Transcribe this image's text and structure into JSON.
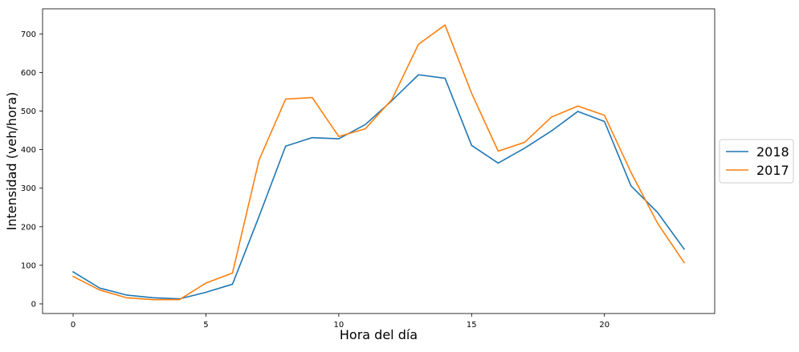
{
  "chart_data": {
    "type": "line",
    "title": "",
    "xlabel": "Hora del día",
    "ylabel": "Intensidad (veh/hora)",
    "xlim": [
      -1.15,
      24.15
    ],
    "ylim": [
      -25,
      765
    ],
    "xticks": [
      0,
      5,
      10,
      15,
      20
    ],
    "yticks": [
      0,
      100,
      200,
      300,
      400,
      500,
      600,
      700
    ],
    "grid": false,
    "legend_position": "outside right",
    "x": [
      0,
      1,
      2,
      3,
      4,
      5,
      6,
      7,
      8,
      9,
      10,
      11,
      12,
      13,
      14,
      15,
      16,
      17,
      18,
      19,
      20,
      21,
      22,
      23
    ],
    "series": [
      {
        "name": "2018",
        "color": "#1f77b4",
        "values": [
          83,
          41,
          23,
          16,
          13,
          30,
          51,
          227,
          409,
          431,
          428,
          465,
          527,
          594,
          585,
          411,
          365,
          404,
          448,
          499,
          473,
          306,
          237,
          142
        ]
      },
      {
        "name": "2017",
        "color": "#ff7f0e",
        "values": [
          71,
          36,
          16,
          11,
          11,
          54,
          80,
          373,
          531,
          535,
          434,
          454,
          530,
          673,
          723,
          546,
          396,
          419,
          484,
          513,
          489,
          341,
          209,
          107
        ]
      }
    ]
  }
}
